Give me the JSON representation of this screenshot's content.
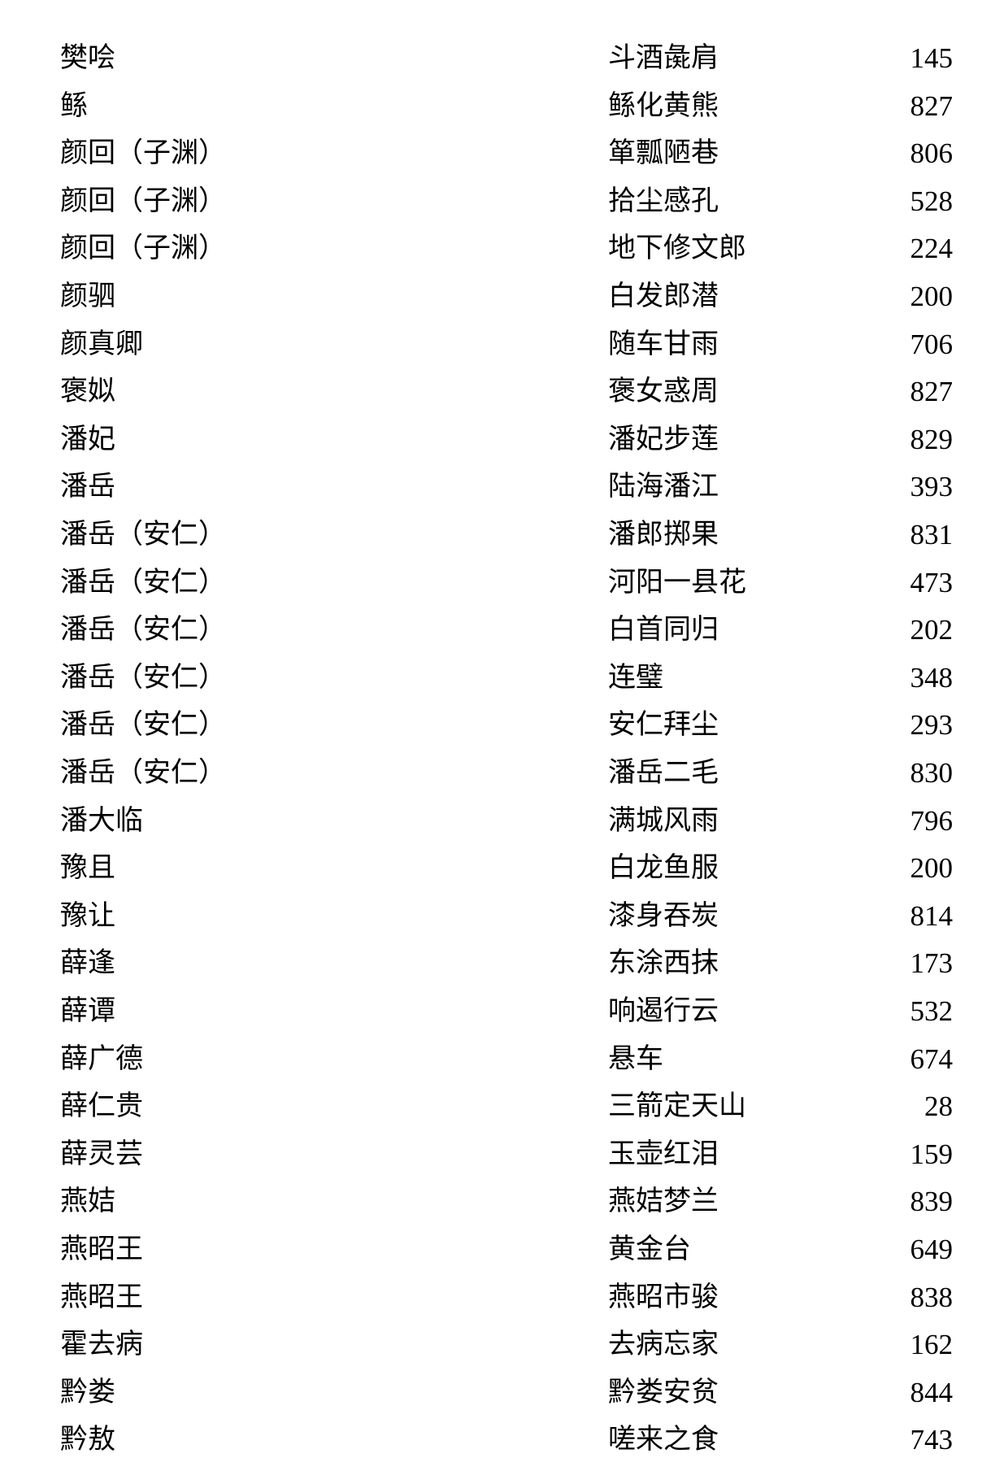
{
  "entries": [
    {
      "name": "樊哙",
      "idiom": "斗酒彘肩",
      "page": "145"
    },
    {
      "name": "鲧",
      "idiom": "鲧化黄熊",
      "page": "827"
    },
    {
      "name": "颜回（子渊）",
      "idiom": "箪瓢陋巷",
      "page": "806"
    },
    {
      "name": "颜回（子渊）",
      "idiom": "拾尘感孔",
      "page": "528"
    },
    {
      "name": "颜回（子渊）",
      "idiom": "地下修文郎",
      "page": "224"
    },
    {
      "name": "颜驷",
      "idiom": "白发郎潜",
      "page": "200"
    },
    {
      "name": "颜真卿",
      "idiom": "随车甘雨",
      "page": "706"
    },
    {
      "name": "褒姒",
      "idiom": "褒女惑周",
      "page": "827"
    },
    {
      "name": "潘妃",
      "idiom": "潘妃步莲",
      "page": "829"
    },
    {
      "name": "潘岳",
      "idiom": "陆海潘江",
      "page": "393"
    },
    {
      "name": "潘岳（安仁）",
      "idiom": "潘郎掷果",
      "page": "831"
    },
    {
      "name": "潘岳（安仁）",
      "idiom": "河阳一县花",
      "page": "473"
    },
    {
      "name": "潘岳（安仁）",
      "idiom": "白首同归",
      "page": "202"
    },
    {
      "name": "潘岳（安仁）",
      "idiom": "连璧",
      "page": "348"
    },
    {
      "name": "潘岳（安仁）",
      "idiom": "安仁拜尘",
      "page": "293"
    },
    {
      "name": "潘岳（安仁）",
      "idiom": "潘岳二毛",
      "page": "830"
    },
    {
      "name": "潘大临",
      "idiom": "满城风雨",
      "page": "796"
    },
    {
      "name": "豫且",
      "idiom": "白龙鱼服",
      "page": "200"
    },
    {
      "name": "豫让",
      "idiom": "漆身吞炭",
      "page": "814"
    },
    {
      "name": "薛逢",
      "idiom": "东涂西抹",
      "page": "173"
    },
    {
      "name": "薛谭",
      "idiom": "响遏行云",
      "page": "532"
    },
    {
      "name": "薛广德",
      "idiom": "悬车",
      "page": "674"
    },
    {
      "name": "薛仁贵",
      "idiom": "三箭定天山",
      "page": "28"
    },
    {
      "name": "薛灵芸",
      "idiom": "玉壶红泪",
      "page": "159"
    },
    {
      "name": "燕姞",
      "idiom": "燕姞梦兰",
      "page": "839"
    },
    {
      "name": "燕昭王",
      "idiom": "黄金台",
      "page": "649"
    },
    {
      "name": "燕昭王",
      "idiom": "燕昭市骏",
      "page": "838"
    },
    {
      "name": "霍去病",
      "idiom": "去病忘家",
      "page": "162"
    },
    {
      "name": "黔娄",
      "idiom": "黔娄安贫",
      "page": "844"
    },
    {
      "name": "黔敖",
      "idiom": "嗟来之食",
      "page": "743"
    }
  ]
}
